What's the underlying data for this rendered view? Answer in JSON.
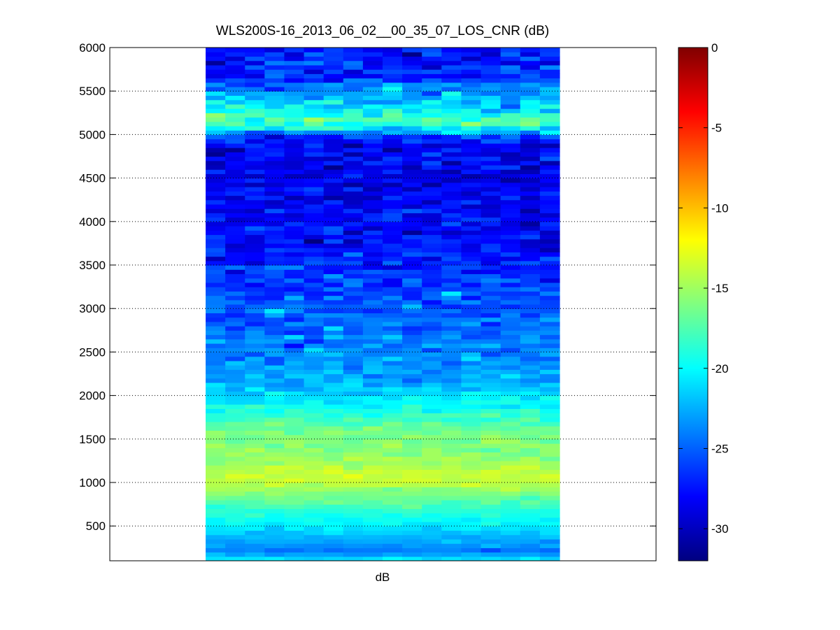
{
  "chart_data": {
    "type": "heatmap",
    "title": "WLS200S-16_2013_06_02__00_35_07_LOS_CNR (dB)",
    "xlabel": "dB",
    "ylabel": "",
    "ylim": [
      100,
      6000
    ],
    "yticks": [
      500,
      1000,
      1500,
      2000,
      2500,
      3000,
      3500,
      4000,
      4500,
      5000,
      5500,
      6000
    ],
    "grid": true,
    "colormap": "jet",
    "color_range": [
      -32,
      0
    ],
    "colorbar_ticks": [
      0,
      -5,
      -10,
      -15,
      -20,
      -25,
      -30
    ],
    "columns": 18,
    "row_height_m": 50,
    "altitude_profile_db": [
      [
        100,
        -20.5
      ],
      [
        150,
        -21.5
      ],
      [
        200,
        -24.5
      ],
      [
        250,
        -24.0
      ],
      [
        300,
        -23.0
      ],
      [
        400,
        -22.0
      ],
      [
        500,
        -20.5
      ],
      [
        600,
        -19.5
      ],
      [
        700,
        -18.5
      ],
      [
        800,
        -17.0
      ],
      [
        900,
        -15.5
      ],
      [
        1000,
        -14.0
      ],
      [
        1100,
        -13.5
      ],
      [
        1200,
        -14.5
      ],
      [
        1300,
        -15.5
      ],
      [
        1400,
        -16.0
      ],
      [
        1500,
        -16.0
      ],
      [
        1600,
        -16.5
      ],
      [
        1700,
        -17.5
      ],
      [
        1800,
        -19.0
      ],
      [
        1900,
        -20.0
      ],
      [
        2000,
        -21.0
      ],
      [
        2100,
        -22.0
      ],
      [
        2200,
        -23.0
      ],
      [
        2400,
        -23.5
      ],
      [
        2600,
        -24.0
      ],
      [
        2800,
        -24.5
      ],
      [
        3000,
        -25.0
      ],
      [
        3200,
        -25.5
      ],
      [
        3400,
        -26.5
      ],
      [
        3700,
        -27.5
      ],
      [
        4000,
        -28.0
      ],
      [
        4500,
        -28.5
      ],
      [
        4900,
        -28.5
      ],
      [
        5000,
        -25.0
      ],
      [
        5050,
        -21.0
      ],
      [
        5100,
        -20.0
      ],
      [
        5150,
        -17.5
      ],
      [
        5200,
        -18.0
      ],
      [
        5250,
        -20.0
      ],
      [
        5350,
        -21.0
      ],
      [
        5450,
        -22.5
      ],
      [
        5550,
        -24.0
      ],
      [
        5650,
        -26.5
      ],
      [
        6000,
        -27.5
      ]
    ],
    "row_noise_std_db": [
      [
        100,
        0.4
      ],
      [
        2000,
        0.8
      ],
      [
        3000,
        1.3
      ],
      [
        5000,
        1.5
      ],
      [
        6000,
        1.6
      ]
    ]
  }
}
